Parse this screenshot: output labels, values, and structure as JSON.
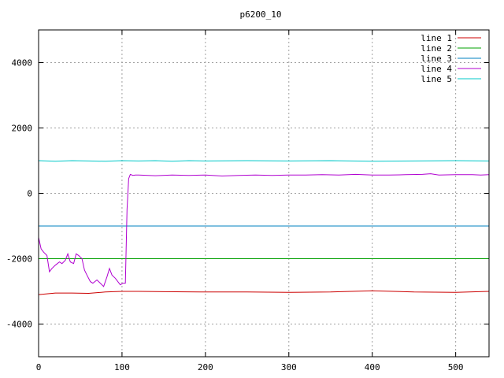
{
  "chart_data": {
    "type": "line",
    "title": "p6200_10",
    "xlabel": "",
    "ylabel": "",
    "xlim": [
      0,
      540
    ],
    "ylim": [
      -5000,
      5000
    ],
    "xticks": [
      0,
      100,
      200,
      300,
      400,
      500
    ],
    "yticks": [
      -4000,
      -2000,
      0,
      2000,
      4000
    ],
    "grid": true,
    "legend_position": "top-right",
    "series": [
      {
        "name": "line 1",
        "color": "#cc0000",
        "x": [
          0,
          20,
          40,
          60,
          80,
          100,
          120,
          150,
          200,
          250,
          300,
          350,
          400,
          450,
          500,
          540
        ],
        "y": [
          -3100,
          -3050,
          -3050,
          -3060,
          -3020,
          -3000,
          -3000,
          -3010,
          -3020,
          -3020,
          -3030,
          -3020,
          -2980,
          -3020,
          -3030,
          -3000
        ]
      },
      {
        "name": "line 2",
        "color": "#00a000",
        "x": [
          0,
          540
        ],
        "y": [
          -2000,
          -2000
        ]
      },
      {
        "name": "line 3",
        "color": "#0080c0",
        "x": [
          0,
          540
        ],
        "y": [
          -1000,
          -1000
        ]
      },
      {
        "name": "line 4",
        "color": "#b000d0",
        "x": [
          0,
          3,
          6,
          10,
          13,
          16,
          20,
          25,
          28,
          32,
          35,
          38,
          42,
          45,
          48,
          52,
          55,
          58,
          62,
          65,
          70,
          74,
          78,
          82,
          85,
          88,
          92,
          95,
          98,
          101,
          104,
          106,
          108,
          110,
          113,
          116,
          120,
          140,
          160,
          180,
          200,
          220,
          240,
          260,
          280,
          300,
          320,
          340,
          360,
          380,
          400,
          420,
          440,
          460,
          470,
          480,
          500,
          520,
          530,
          540
        ],
        "y": [
          -1350,
          -1700,
          -1800,
          -1900,
          -2400,
          -2300,
          -2200,
          -2100,
          -2150,
          -2050,
          -1850,
          -2100,
          -2150,
          -1850,
          -1900,
          -2000,
          -2350,
          -2500,
          -2700,
          -2750,
          -2650,
          -2750,
          -2850,
          -2550,
          -2300,
          -2500,
          -2600,
          -2700,
          -2800,
          -2750,
          -2750,
          -500,
          450,
          580,
          550,
          560,
          560,
          540,
          560,
          550,
          560,
          530,
          550,
          560,
          550,
          560,
          560,
          570,
          560,
          580,
          560,
          560,
          570,
          580,
          600,
          560,
          570,
          570,
          560,
          570
        ]
      },
      {
        "name": "line 5",
        "color": "#00c8c8",
        "x": [
          0,
          20,
          40,
          60,
          80,
          100,
          120,
          140,
          160,
          180,
          200,
          250,
          300,
          350,
          400,
          450,
          500,
          540
        ],
        "y": [
          1000,
          980,
          1000,
          990,
          980,
          1000,
          990,
          1000,
          980,
          1000,
          990,
          1000,
          990,
          1000,
          980,
          990,
          1000,
          990
        ]
      }
    ]
  }
}
